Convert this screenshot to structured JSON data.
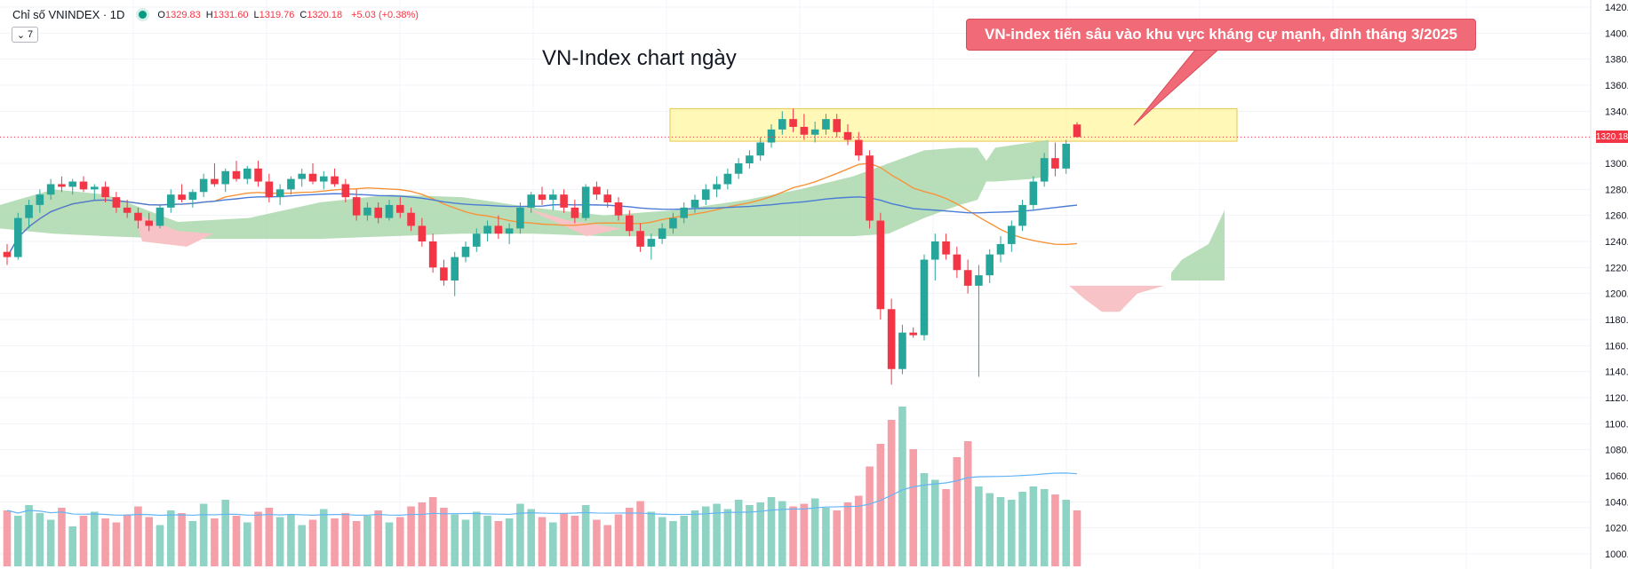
{
  "legend": {
    "symbol": "Chỉ số VNINDEX · 1D",
    "o_label": "O",
    "o_value": "1329.83",
    "h_label": "H",
    "h_value": "1331.60",
    "l_label": "L",
    "l_value": "1319.76",
    "c_label": "C",
    "c_value": "1320.18",
    "change": "+5.03 (+0.38%)",
    "collapse_count": "7"
  },
  "title": "VN-Index chart ngày",
  "annotation": "VN-index tiến sâu vào khu vực kháng cự mạnh, đỉnh tháng 3/2025",
  "last_price_tag": "1320.18",
  "colors": {
    "up": "#26a69a",
    "down": "#f23645",
    "vol_up": "#8fd3c5",
    "vol_down": "#f5a0a8",
    "ma_fast": "#f7943a",
    "ma_slow": "#4a7bd6",
    "cloud_green": "#a5d6a7",
    "cloud_red": "#f8c3c6",
    "zone": "#fff59d"
  },
  "chart_data": {
    "type": "candlestick",
    "y_axis": {
      "min": 1000,
      "max": 1420,
      "ticks": [
        1000,
        1020,
        1040,
        1060,
        1080,
        1100,
        1120,
        1140,
        1160,
        1180,
        1200,
        1220,
        1240,
        1260,
        1280,
        1300,
        1320,
        1340,
        1360,
        1380,
        1400,
        1420
      ],
      "tick_format": "0.00"
    },
    "resistance_zone": {
      "low": 1317,
      "high": 1342
    },
    "last_close": 1320.18,
    "grid": true,
    "candles": [
      [
        1232,
        1238,
        1222,
        1228
      ],
      [
        1228,
        1262,
        1226,
        1258
      ],
      [
        1258,
        1272,
        1250,
        1268
      ],
      [
        1268,
        1280,
        1262,
        1276
      ],
      [
        1276,
        1288,
        1272,
        1284
      ],
      [
        1284,
        1290,
        1278,
        1282
      ],
      [
        1282,
        1288,
        1276,
        1286
      ],
      [
        1286,
        1290,
        1278,
        1280
      ],
      [
        1280,
        1284,
        1272,
        1282
      ],
      [
        1282,
        1286,
        1270,
        1274
      ],
      [
        1274,
        1278,
        1262,
        1266
      ],
      [
        1266,
        1272,
        1258,
        1262
      ],
      [
        1262,
        1266,
        1250,
        1256
      ],
      [
        1256,
        1262,
        1248,
        1252
      ],
      [
        1252,
        1268,
        1250,
        1266
      ],
      [
        1266,
        1280,
        1262,
        1276
      ],
      [
        1276,
        1284,
        1270,
        1272
      ],
      [
        1272,
        1280,
        1266,
        1278
      ],
      [
        1278,
        1292,
        1274,
        1288
      ],
      [
        1288,
        1300,
        1282,
        1284
      ],
      [
        1284,
        1296,
        1278,
        1294
      ],
      [
        1294,
        1302,
        1286,
        1288
      ],
      [
        1288,
        1298,
        1284,
        1296
      ],
      [
        1296,
        1302,
        1282,
        1286
      ],
      [
        1286,
        1292,
        1270,
        1274
      ],
      [
        1274,
        1284,
        1268,
        1280
      ],
      [
        1280,
        1290,
        1276,
        1288
      ],
      [
        1288,
        1296,
        1282,
        1292
      ],
      [
        1292,
        1300,
        1284,
        1286
      ],
      [
        1286,
        1294,
        1280,
        1290
      ],
      [
        1290,
        1296,
        1282,
        1284
      ],
      [
        1284,
        1288,
        1270,
        1274
      ],
      [
        1274,
        1280,
        1256,
        1260
      ],
      [
        1260,
        1270,
        1256,
        1266
      ],
      [
        1266,
        1270,
        1254,
        1258
      ],
      [
        1258,
        1272,
        1256,
        1268
      ],
      [
        1268,
        1274,
        1258,
        1262
      ],
      [
        1262,
        1266,
        1248,
        1252
      ],
      [
        1252,
        1258,
        1236,
        1240
      ],
      [
        1240,
        1246,
        1216,
        1220
      ],
      [
        1220,
        1226,
        1206,
        1210
      ],
      [
        1210,
        1232,
        1198,
        1228
      ],
      [
        1228,
        1240,
        1224,
        1236
      ],
      [
        1236,
        1250,
        1232,
        1246
      ],
      [
        1246,
        1256,
        1240,
        1252
      ],
      [
        1252,
        1260,
        1242,
        1246
      ],
      [
        1246,
        1254,
        1238,
        1250
      ],
      [
        1250,
        1270,
        1246,
        1266
      ],
      [
        1266,
        1278,
        1262,
        1276
      ],
      [
        1276,
        1282,
        1268,
        1272
      ],
      [
        1272,
        1280,
        1264,
        1276
      ],
      [
        1276,
        1280,
        1262,
        1266
      ],
      [
        1266,
        1272,
        1254,
        1258
      ],
      [
        1258,
        1284,
        1256,
        1282
      ],
      [
        1282,
        1286,
        1272,
        1276
      ],
      [
        1276,
        1280,
        1266,
        1270
      ],
      [
        1270,
        1274,
        1256,
        1260
      ],
      [
        1260,
        1264,
        1244,
        1248
      ],
      [
        1248,
        1254,
        1232,
        1236
      ],
      [
        1236,
        1246,
        1226,
        1242
      ],
      [
        1242,
        1254,
        1238,
        1250
      ],
      [
        1250,
        1262,
        1246,
        1258
      ],
      [
        1258,
        1270,
        1254,
        1266
      ],
      [
        1266,
        1276,
        1262,
        1272
      ],
      [
        1272,
        1284,
        1268,
        1280
      ],
      [
        1280,
        1290,
        1274,
        1284
      ],
      [
        1284,
        1296,
        1280,
        1292
      ],
      [
        1292,
        1304,
        1288,
        1300
      ],
      [
        1300,
        1310,
        1296,
        1306
      ],
      [
        1306,
        1320,
        1302,
        1316
      ],
      [
        1316,
        1330,
        1312,
        1326
      ],
      [
        1326,
        1340,
        1322,
        1334
      ],
      [
        1334,
        1342,
        1324,
        1328
      ],
      [
        1328,
        1338,
        1318,
        1322
      ],
      [
        1322,
        1332,
        1316,
        1326
      ],
      [
        1326,
        1338,
        1322,
        1334
      ],
      [
        1334,
        1338,
        1320,
        1324
      ],
      [
        1324,
        1330,
        1314,
        1318
      ],
      [
        1318,
        1324,
        1302,
        1306
      ],
      [
        1306,
        1310,
        1250,
        1256
      ],
      [
        1256,
        1262,
        1180,
        1188
      ],
      [
        1188,
        1196,
        1130,
        1142
      ],
      [
        1142,
        1176,
        1138,
        1170
      ],
      [
        1170,
        1174,
        1166,
        1168
      ],
      [
        1168,
        1230,
        1164,
        1226
      ],
      [
        1226,
        1246,
        1210,
        1240
      ],
      [
        1240,
        1246,
        1226,
        1230
      ],
      [
        1230,
        1236,
        1212,
        1218
      ],
      [
        1218,
        1226,
        1200,
        1206
      ],
      [
        1206,
        1222,
        1136,
        1214
      ],
      [
        1214,
        1234,
        1208,
        1230
      ],
      [
        1230,
        1244,
        1224,
        1238
      ],
      [
        1238,
        1256,
        1232,
        1252
      ],
      [
        1252,
        1272,
        1248,
        1268
      ],
      [
        1268,
        1290,
        1264,
        1286
      ],
      [
        1286,
        1308,
        1282,
        1304
      ],
      [
        1304,
        1316,
        1290,
        1296
      ],
      [
        1296,
        1318,
        1292,
        1315
      ],
      [
        1329.83,
        1331.6,
        1319.76,
        1320.18
      ]
    ],
    "volume": [
      42,
      38,
      46,
      40,
      35,
      44,
      30,
      38,
      41,
      36,
      33,
      39,
      45,
      37,
      31,
      42,
      40,
      34,
      47,
      36,
      50,
      38,
      33,
      41,
      44,
      37,
      39,
      31,
      35,
      43,
      36,
      40,
      34,
      38,
      42,
      33,
      37,
      45,
      48,
      52,
      44,
      39,
      35,
      41,
      38,
      34,
      36,
      47,
      43,
      37,
      33,
      40,
      38,
      46,
      35,
      31,
      39,
      44,
      49,
      41,
      37,
      34,
      38,
      42,
      45,
      47,
      43,
      50,
      46,
      48,
      52,
      49,
      45,
      47,
      51,
      44,
      42,
      48,
      53,
      75,
      92,
      110,
      120,
      88,
      70,
      65,
      58,
      82,
      94,
      60,
      55,
      52,
      50,
      56,
      60,
      58,
      54,
      50,
      42
    ]
  }
}
